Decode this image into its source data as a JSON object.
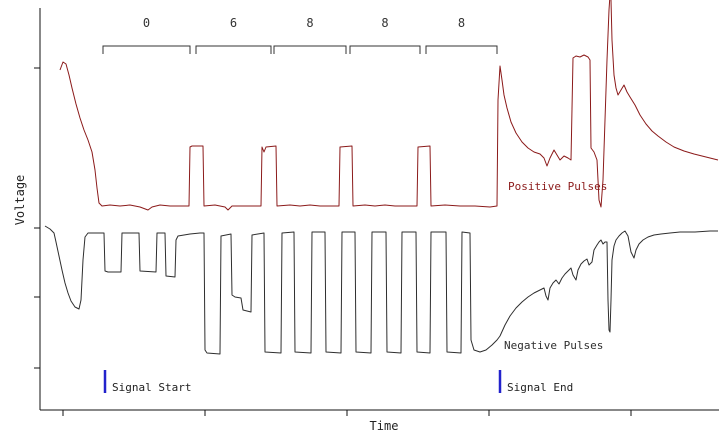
{
  "chart_data": {
    "type": "line",
    "title": "",
    "xlabel": "Time",
    "ylabel": "Voltage",
    "grid": false,
    "units": "pixel-estimated (axes carry no numeric tick labels)",
    "axis": {
      "x_axis_y": 410,
      "y_axis_x": 40,
      "x_ticks": [
        63,
        205,
        347,
        489,
        631
      ],
      "y_ticks": [
        68,
        228,
        297,
        368
      ]
    },
    "pulse_group_labels": [
      {
        "label": "0",
        "bracket": [
          103,
          190
        ]
      },
      {
        "label": "6",
        "bracket": [
          196,
          271
        ]
      },
      {
        "label": "8",
        "bracket": [
          274,
          346
        ]
      },
      {
        "label": "8",
        "bracket": [
          350,
          420
        ]
      },
      {
        "label": "8",
        "bracket": [
          426,
          497
        ]
      }
    ],
    "markers": [
      {
        "label": "Signal Start",
        "x": 105,
        "y1": 370,
        "y2": 393,
        "color": "#2222cc"
      },
      {
        "label": "Signal End",
        "x": 500,
        "y1": 370,
        "y2": 393,
        "color": "#2222cc"
      }
    ],
    "series": [
      {
        "name": "Positive Pulses",
        "color": "#8b1a1a",
        "label_pos": [
          508,
          190
        ],
        "points": [
          [
            60,
            70
          ],
          [
            63,
            62
          ],
          [
            66,
            64
          ],
          [
            69,
            75
          ],
          [
            72,
            88
          ],
          [
            76,
            104
          ],
          [
            80,
            118
          ],
          [
            84,
            130
          ],
          [
            88,
            140
          ],
          [
            92,
            152
          ],
          [
            95,
            170
          ],
          [
            97,
            188
          ],
          [
            99,
            203
          ],
          [
            102,
            206
          ],
          [
            110,
            205
          ],
          [
            120,
            206
          ],
          [
            130,
            205
          ],
          [
            140,
            207
          ],
          [
            148,
            210
          ],
          [
            152,
            207
          ],
          [
            160,
            205
          ],
          [
            170,
            206
          ],
          [
            180,
            206
          ],
          [
            189,
            206
          ],
          [
            190,
            147
          ],
          [
            192,
            146
          ],
          [
            203,
            146
          ],
          [
            204,
            206
          ],
          [
            215,
            205
          ],
          [
            225,
            207
          ],
          [
            228,
            210
          ],
          [
            232,
            206
          ],
          [
            245,
            206
          ],
          [
            255,
            206
          ],
          [
            261,
            206
          ],
          [
            262,
            147
          ],
          [
            264,
            152
          ],
          [
            266,
            147
          ],
          [
            276,
            146
          ],
          [
            277,
            206
          ],
          [
            290,
            205
          ],
          [
            300,
            206
          ],
          [
            310,
            205
          ],
          [
            320,
            206
          ],
          [
            330,
            206
          ],
          [
            339,
            206
          ],
          [
            340,
            147
          ],
          [
            352,
            146
          ],
          [
            353,
            206
          ],
          [
            365,
            205
          ],
          [
            375,
            206
          ],
          [
            385,
            205
          ],
          [
            395,
            206
          ],
          [
            405,
            206
          ],
          [
            417,
            206
          ],
          [
            418,
            147
          ],
          [
            430,
            146
          ],
          [
            431,
            206
          ],
          [
            445,
            205
          ],
          [
            460,
            206
          ],
          [
            475,
            206
          ],
          [
            490,
            207
          ],
          [
            497,
            206
          ],
          [
            498,
            100
          ],
          [
            500,
            66
          ],
          [
            502,
            80
          ],
          [
            504,
            95
          ],
          [
            507,
            108
          ],
          [
            511,
            122
          ],
          [
            516,
            133
          ],
          [
            522,
            142
          ],
          [
            528,
            148
          ],
          [
            534,
            152
          ],
          [
            540,
            154
          ],
          [
            544,
            158
          ],
          [
            547,
            166
          ],
          [
            550,
            158
          ],
          [
            554,
            150
          ],
          [
            557,
            155
          ],
          [
            560,
            160
          ],
          [
            564,
            156
          ],
          [
            568,
            158
          ],
          [
            571,
            160
          ],
          [
            573,
            58
          ],
          [
            576,
            56
          ],
          [
            580,
            57
          ],
          [
            584,
            55
          ],
          [
            588,
            57
          ],
          [
            590,
            60
          ],
          [
            591,
            148
          ],
          [
            594,
            152
          ],
          [
            597,
            160
          ],
          [
            599,
            200
          ],
          [
            601,
            207
          ],
          [
            603,
            180
          ],
          [
            605,
            120
          ],
          [
            607,
            60
          ],
          [
            609,
            10
          ],
          [
            610,
            -5
          ],
          [
            611,
            0
          ],
          [
            612,
            40
          ],
          [
            614,
            75
          ],
          [
            616,
            88
          ],
          [
            618,
            95
          ],
          [
            621,
            90
          ],
          [
            624,
            85
          ],
          [
            627,
            92
          ],
          [
            630,
            97
          ],
          [
            635,
            105
          ],
          [
            640,
            115
          ],
          [
            646,
            124
          ],
          [
            652,
            131
          ],
          [
            658,
            136
          ],
          [
            666,
            142
          ],
          [
            674,
            147
          ],
          [
            684,
            151
          ],
          [
            694,
            154
          ],
          [
            706,
            157
          ],
          [
            718,
            160
          ]
        ]
      },
      {
        "name": "Negative Pulses",
        "color": "#2e2e2e",
        "label_pos": [
          504,
          349
        ],
        "points": [
          [
            45,
            226
          ],
          [
            50,
            229
          ],
          [
            54,
            233
          ],
          [
            56,
            242
          ],
          [
            59,
            256
          ],
          [
            62,
            270
          ],
          [
            65,
            283
          ],
          [
            68,
            293
          ],
          [
            71,
            301
          ],
          [
            75,
            307
          ],
          [
            79,
            309
          ],
          [
            81,
            300
          ],
          [
            83,
            260
          ],
          [
            85,
            237
          ],
          [
            88,
            233
          ],
          [
            104,
            233
          ],
          [
            105,
            271
          ],
          [
            108,
            272
          ],
          [
            121,
            272
          ],
          [
            122,
            233
          ],
          [
            139,
            233
          ],
          [
            140,
            271
          ],
          [
            156,
            272
          ],
          [
            157,
            233
          ],
          [
            165,
            233
          ],
          [
            166,
            276
          ],
          [
            175,
            277
          ],
          [
            176,
            240
          ],
          [
            178,
            236
          ],
          [
            190,
            234
          ],
          [
            200,
            233
          ],
          [
            204,
            233
          ],
          [
            205,
            350
          ],
          [
            207,
            353
          ],
          [
            220,
            354
          ],
          [
            221,
            236
          ],
          [
            231,
            234
          ],
          [
            232,
            295
          ],
          [
            235,
            297
          ],
          [
            241,
            298
          ],
          [
            243,
            310
          ],
          [
            251,
            312
          ],
          [
            252,
            235
          ],
          [
            264,
            233
          ],
          [
            265,
            352
          ],
          [
            281,
            353
          ],
          [
            282,
            233
          ],
          [
            294,
            232
          ],
          [
            295,
            352
          ],
          [
            311,
            353
          ],
          [
            312,
            232
          ],
          [
            325,
            232
          ],
          [
            326,
            352
          ],
          [
            341,
            353
          ],
          [
            342,
            232
          ],
          [
            355,
            232
          ],
          [
            356,
            352
          ],
          [
            371,
            353
          ],
          [
            372,
            232
          ],
          [
            386,
            232
          ],
          [
            387,
            352
          ],
          [
            401,
            353
          ],
          [
            402,
            232
          ],
          [
            416,
            232
          ],
          [
            417,
            352
          ],
          [
            430,
            353
          ],
          [
            431,
            232
          ],
          [
            446,
            232
          ],
          [
            447,
            352
          ],
          [
            461,
            353
          ],
          [
            462,
            232
          ],
          [
            470,
            233
          ],
          [
            471,
            340
          ],
          [
            474,
            350
          ],
          [
            480,
            352
          ],
          [
            486,
            350
          ],
          [
            492,
            345
          ],
          [
            497,
            340
          ],
          [
            500,
            336
          ],
          [
            505,
            325
          ],
          [
            510,
            316
          ],
          [
            516,
            308
          ],
          [
            522,
            302
          ],
          [
            528,
            297
          ],
          [
            534,
            293
          ],
          [
            540,
            290
          ],
          [
            544,
            288
          ],
          [
            546,
            296
          ],
          [
            548,
            300
          ],
          [
            550,
            288
          ],
          [
            553,
            283
          ],
          [
            556,
            280
          ],
          [
            559,
            284
          ],
          [
            562,
            278
          ],
          [
            565,
            274
          ],
          [
            568,
            271
          ],
          [
            571,
            268
          ],
          [
            573,
            275
          ],
          [
            576,
            280
          ],
          [
            578,
            270
          ],
          [
            581,
            264
          ],
          [
            584,
            261
          ],
          [
            587,
            259
          ],
          [
            589,
            265
          ],
          [
            592,
            262
          ],
          [
            594,
            250
          ],
          [
            597,
            245
          ],
          [
            599,
            242
          ],
          [
            601,
            240
          ],
          [
            603,
            244
          ],
          [
            605,
            242
          ],
          [
            607,
            242
          ],
          [
            608,
            300
          ],
          [
            609,
            330
          ],
          [
            610,
            332
          ],
          [
            611,
            300
          ],
          [
            612,
            260
          ],
          [
            614,
            246
          ],
          [
            616,
            240
          ],
          [
            619,
            236
          ],
          [
            622,
            233
          ],
          [
            625,
            231
          ],
          [
            628,
            236
          ],
          [
            631,
            252
          ],
          [
            634,
            258
          ],
          [
            636,
            250
          ],
          [
            639,
            244
          ],
          [
            643,
            240
          ],
          [
            648,
            237
          ],
          [
            654,
            235
          ],
          [
            661,
            234
          ],
          [
            670,
            233
          ],
          [
            680,
            232
          ],
          [
            695,
            232
          ],
          [
            710,
            231
          ],
          [
            718,
            231
          ]
        ]
      }
    ]
  }
}
